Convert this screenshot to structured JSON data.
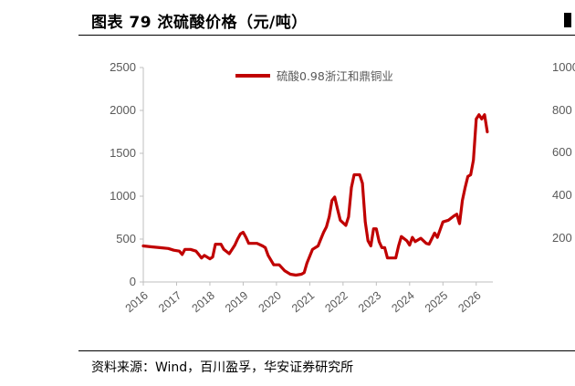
{
  "figure": {
    "title": "图表 79 浓硫酸价格（元/吨）",
    "source": "资料来源：Wind，百川盈孚，华安证券研究所"
  },
  "chart_data": {
    "type": "line",
    "title": "",
    "xlabel": "",
    "ylabel": "",
    "ylim": [
      0,
      2500
    ],
    "yticks": [
      0,
      500,
      1000,
      1500,
      2000,
      2500
    ],
    "xlim": [
      "2016-01",
      "2026-07"
    ],
    "xticks": [
      "2016",
      "2017",
      "2018",
      "2019",
      "2020",
      "2021",
      "2022",
      "2023",
      "2024",
      "2025",
      "2026"
    ],
    "grid": false,
    "legend": "top-center",
    "series": [
      {
        "name": "硫酸0.98浙江和鼎铜业",
        "color": "#C00000",
        "points": [
          [
            "2016-01",
            420
          ],
          [
            "2016-04",
            410
          ],
          [
            "2016-07",
            400
          ],
          [
            "2016-10",
            390
          ],
          [
            "2016-12",
            370
          ],
          [
            "2017-02",
            360
          ],
          [
            "2017-03",
            320
          ],
          [
            "2017-04",
            380
          ],
          [
            "2017-06",
            380
          ],
          [
            "2017-08",
            360
          ],
          [
            "2017-09",
            320
          ],
          [
            "2017-10",
            280
          ],
          [
            "2017-11",
            310
          ],
          [
            "2018-01",
            270
          ],
          [
            "2018-02",
            290
          ],
          [
            "2018-03",
            440
          ],
          [
            "2018-05",
            440
          ],
          [
            "2018-06",
            380
          ],
          [
            "2018-08",
            330
          ],
          [
            "2018-09",
            380
          ],
          [
            "2018-10",
            430
          ],
          [
            "2018-11",
            500
          ],
          [
            "2018-12",
            560
          ],
          [
            "2019-01",
            580
          ],
          [
            "2019-02",
            520
          ],
          [
            "2019-03",
            450
          ],
          [
            "2019-06",
            450
          ],
          [
            "2019-08",
            420
          ],
          [
            "2019-09",
            400
          ],
          [
            "2019-10",
            310
          ],
          [
            "2019-12",
            200
          ],
          [
            "2020-02",
            200
          ],
          [
            "2020-04",
            130
          ],
          [
            "2020-06",
            90
          ],
          [
            "2020-08",
            80
          ],
          [
            "2020-10",
            90
          ],
          [
            "2020-11",
            110
          ],
          [
            "2020-12",
            220
          ],
          [
            "2021-02",
            380
          ],
          [
            "2021-04",
            420
          ],
          [
            "2021-05",
            500
          ],
          [
            "2021-06",
            580
          ],
          [
            "2021-07",
            640
          ],
          [
            "2021-08",
            760
          ],
          [
            "2021-09",
            950
          ],
          [
            "2021-10",
            990
          ],
          [
            "2021-11",
            850
          ],
          [
            "2021-12",
            720
          ],
          [
            "2022-02",
            660
          ],
          [
            "2022-03",
            760
          ],
          [
            "2022-04",
            1100
          ],
          [
            "2022-05",
            1250
          ],
          [
            "2022-07",
            1250
          ],
          [
            "2022-08",
            1150
          ],
          [
            "2022-09",
            700
          ],
          [
            "2022-10",
            480
          ],
          [
            "2022-11",
            420
          ],
          [
            "2022-12",
            620
          ],
          [
            "2023-01",
            620
          ],
          [
            "2023-02",
            470
          ],
          [
            "2023-03",
            400
          ],
          [
            "2023-04",
            400
          ],
          [
            "2023-05",
            280
          ],
          [
            "2023-08",
            280
          ],
          [
            "2023-09",
            420
          ],
          [
            "2023-10",
            530
          ],
          [
            "2023-12",
            480
          ],
          [
            "2024-01",
            430
          ],
          [
            "2024-02",
            520
          ],
          [
            "2024-03",
            470
          ],
          [
            "2024-05",
            510
          ],
          [
            "2024-07",
            450
          ],
          [
            "2024-08",
            440
          ],
          [
            "2024-10",
            570
          ],
          [
            "2024-11",
            520
          ],
          [
            "2025-01",
            700
          ],
          [
            "2025-03",
            720
          ],
          [
            "2025-05",
            770
          ],
          [
            "2025-06",
            790
          ],
          [
            "2025-07",
            680
          ],
          [
            "2025-08",
            950
          ],
          [
            "2025-09",
            1100
          ],
          [
            "2025-10",
            1230
          ],
          [
            "2025-11",
            1250
          ],
          [
            "2025-12",
            1420
          ],
          [
            "2026-01",
            1900
          ],
          [
            "2026-02",
            1950
          ],
          [
            "2026-03",
            1900
          ],
          [
            "2026-04",
            1950
          ],
          [
            "2026-05",
            1750
          ]
        ]
      }
    ]
  },
  "neighbor_chart": {
    "ytick_labels": [
      "1000",
      "800",
      "600",
      "400",
      "200"
    ]
  }
}
